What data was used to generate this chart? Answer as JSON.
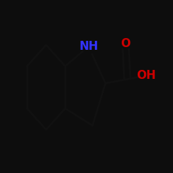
{
  "background_color": "#0d0d0d",
  "bond_color": "#111111",
  "line_width": 2.0,
  "N_color": "#3333ff",
  "O_color": "#cc0000",
  "label_NH": "NH",
  "label_O": "O",
  "label_OH": "OH",
  "fontsize_NH": 12,
  "fontsize_O": 12,
  "fontsize_OH": 12,
  "fig_width": 2.5,
  "fig_height": 2.5,
  "dpi": 100
}
